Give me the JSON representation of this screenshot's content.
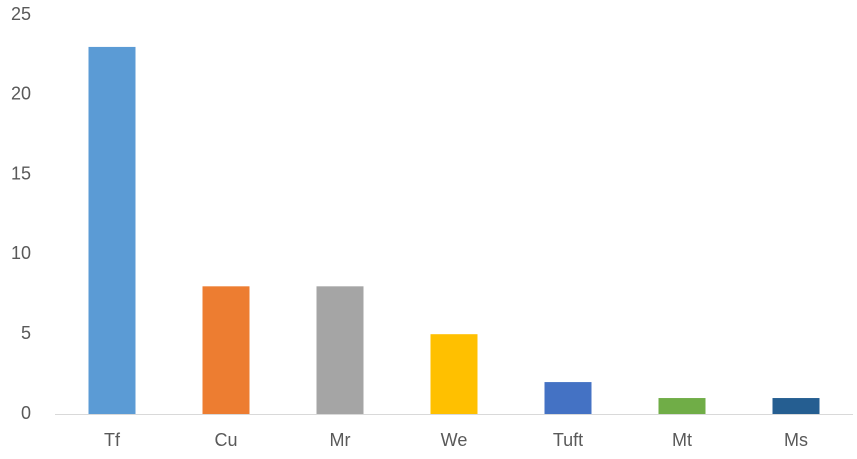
{
  "chart_data": {
    "type": "bar",
    "categories": [
      "Tf",
      "Cu",
      "Mr",
      "We",
      "Tuft",
      "Mt",
      "Ms"
    ],
    "values": [
      23,
      8,
      8,
      5,
      2,
      1,
      1
    ],
    "colors": [
      "#5b9bd5",
      "#ed7d31",
      "#a5a5a5",
      "#ffc000",
      "#4472c4",
      "#70ad47",
      "#255e91"
    ],
    "ylim": [
      0,
      25
    ],
    "yticks": [
      0,
      5,
      10,
      15,
      20,
      25
    ],
    "grid": false
  }
}
